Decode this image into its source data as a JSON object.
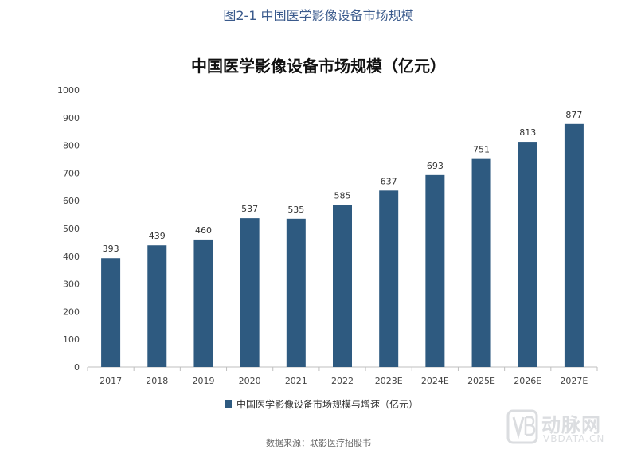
{
  "figure_caption": "图2-1 中国医学影像设备市场规模",
  "source_note": "数据来源：联影医疗招股书",
  "watermark": {
    "text_cn": "动脉网",
    "text_en": "VBDATA.CN",
    "icon": "vb-logo-icon"
  },
  "colors": {
    "bar": "#2e5a80",
    "caption": "#3a5a8c",
    "axis": "#bfbfbf"
  },
  "chart_data": {
    "type": "bar",
    "title": "中国医学影像设备市场规模（亿元）",
    "categories": [
      "2017",
      "2018",
      "2019",
      "2020",
      "2021",
      "2022",
      "2023E",
      "2024E",
      "2025E",
      "2026E",
      "2027E"
    ],
    "series": [
      {
        "name": "中国医学影像设备市场规模与增速（亿元）",
        "values": [
          393,
          439,
          460,
          537,
          535,
          585,
          637,
          693,
          751,
          813,
          877
        ]
      }
    ],
    "ylim": [
      0,
      1000
    ],
    "yticks": [
      0,
      100,
      200,
      300,
      400,
      500,
      600,
      700,
      800,
      900,
      1000
    ],
    "grid": false,
    "legend_position": "bottom",
    "data_labels": true
  }
}
